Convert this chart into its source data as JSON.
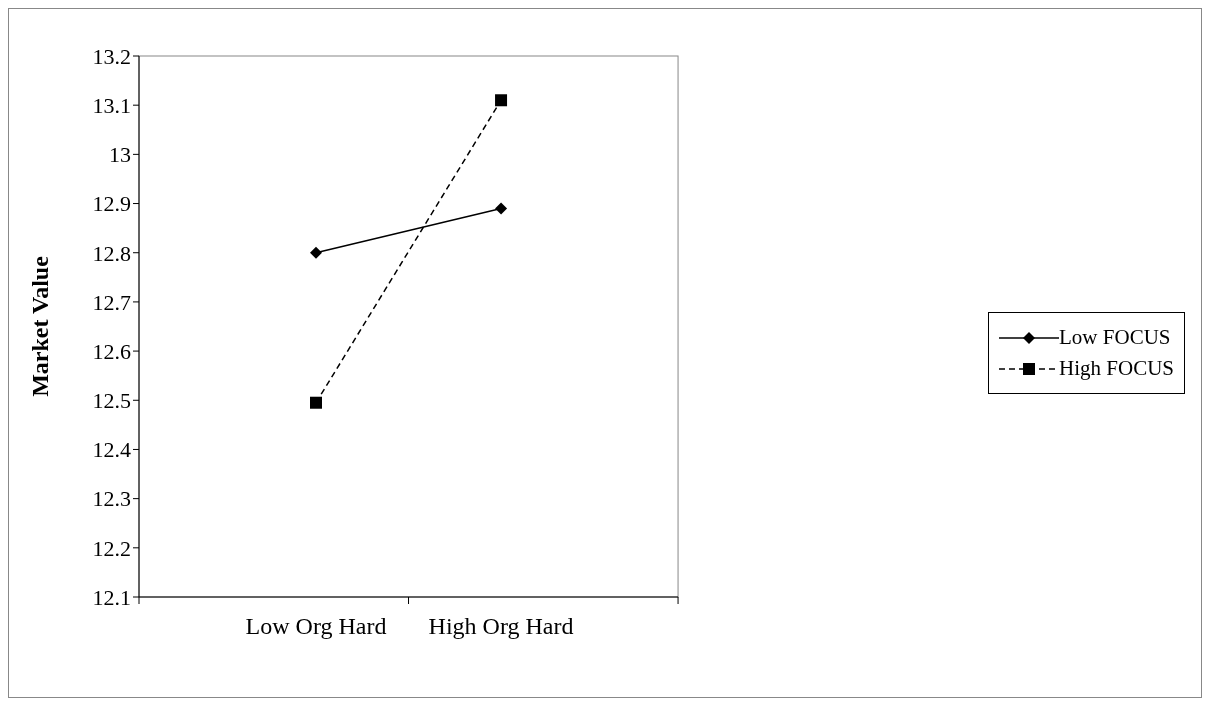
{
  "chart_data": {
    "type": "line",
    "ylabel": "Market Value",
    "categories": [
      "Low Org Hard",
      "High Org Hard"
    ],
    "ylim": [
      12.1,
      13.2
    ],
    "yticks": [
      12.1,
      12.2,
      12.3,
      12.4,
      12.5,
      12.6,
      12.7,
      12.8,
      12.9,
      {
        "value": 13,
        "label": "13"
      },
      13.1,
      13.2
    ],
    "grid": false,
    "legend": "right",
    "series": [
      {
        "name": "Low FOCUS",
        "color": "#000000",
        "values": [
          12.8,
          12.89
        ],
        "marker": "diamond",
        "line_style": "solid"
      },
      {
        "name": "High FOCUS",
        "color": "#000000",
        "values": [
          12.495,
          13.11
        ],
        "marker": "square",
        "line_style": "dashed"
      }
    ]
  }
}
